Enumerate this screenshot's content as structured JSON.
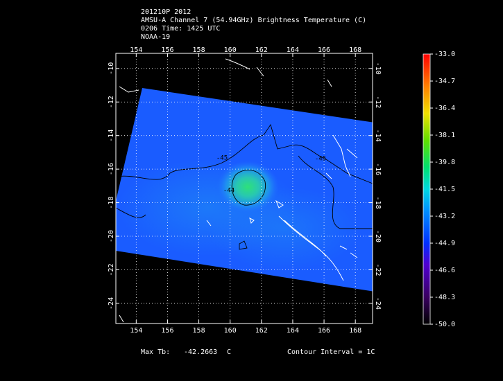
{
  "header": {
    "lines": [
      "201210P 2012",
      "AMSU-A Channel 7 (54.94GHz) Brightness Temperature (C)",
      "0206 Time: 1425 UTC",
      "NOAA-19"
    ]
  },
  "map": {
    "xlim": [
      152.7,
      169.1
    ],
    "ylim": [
      -25.2,
      -9.1
    ],
    "lon_ticks": [
      154,
      156,
      158,
      160,
      162,
      164,
      166,
      168
    ],
    "lat_ticks": [
      -10,
      -12,
      -14,
      -16,
      -18,
      -20,
      -22,
      -24
    ],
    "contour_labels": [
      "-45",
      "-44",
      "-45"
    ]
  },
  "colorbar": {
    "range": [
      -50,
      -33
    ],
    "ticks": [
      {
        "value": -33,
        "label": "-33.0"
      },
      {
        "value": -34.7,
        "label": "-34.7"
      },
      {
        "value": -36.4,
        "label": "-36.4"
      },
      {
        "value": -38.1,
        "label": "-38.1"
      },
      {
        "value": -39.8,
        "label": "-39.8"
      },
      {
        "value": -41.5,
        "label": "-41.5"
      },
      {
        "value": -43.2,
        "label": "-43.2"
      },
      {
        "value": -44.9,
        "label": "-44.9"
      },
      {
        "value": -46.6,
        "label": "-46.6"
      },
      {
        "value": -48.3,
        "label": "-48.3"
      },
      {
        "value": -50,
        "label": "-50.0"
      }
    ]
  },
  "footer": {
    "max_label": "Max Tb:",
    "max_value": "-42.2663",
    "unit": "C",
    "contour": "Contour Interval = 1C"
  }
}
